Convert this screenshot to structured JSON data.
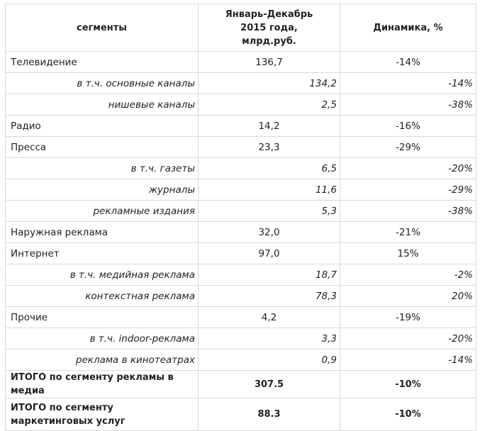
{
  "header": {
    "segment": "сегменты",
    "period_line1": "Январь-Декабрь",
    "period_line2": "2015 года,",
    "period_line3": "млрд.руб.",
    "dynamics": "Динамика, %"
  },
  "rows": [
    {
      "type": "main",
      "segment": "Телевидение",
      "value": "136,7",
      "dynamics": "-14%"
    },
    {
      "type": "sub",
      "segment": "в т.ч. основные каналы",
      "value": "134,2",
      "dynamics": "-14%"
    },
    {
      "type": "sub",
      "segment": "нишевые каналы",
      "value": "2,5",
      "dynamics": "-38%"
    },
    {
      "type": "main",
      "segment": "Радио",
      "value": "14,2",
      "dynamics": "-16%"
    },
    {
      "type": "main",
      "segment": "Пресса",
      "value": "23,3",
      "dynamics": "-29%"
    },
    {
      "type": "sub",
      "segment": "в т.ч. газеты",
      "value": "6,5",
      "dynamics": "-20%"
    },
    {
      "type": "sub",
      "segment": "журналы",
      "value": "11,6",
      "dynamics": "-29%"
    },
    {
      "type": "sub",
      "segment": "рекламные издания",
      "value": "5,3",
      "dynamics": "-38%"
    },
    {
      "type": "main",
      "segment": "Наружная реклама",
      "value": "32,0",
      "dynamics": "-21%"
    },
    {
      "type": "main",
      "segment": "Интернет",
      "value": "97,0",
      "dynamics": "15%"
    },
    {
      "type": "sub",
      "segment": "в т.ч. медийная реклама",
      "value": "18,7",
      "dynamics": "-2%"
    },
    {
      "type": "sub",
      "segment": "контекстная реклама",
      "value": "78,3",
      "dynamics": "20%"
    },
    {
      "type": "main",
      "segment": "Прочие",
      "value": "4,2",
      "dynamics": "-19%"
    },
    {
      "type": "sub",
      "segment": "в т.ч. indoor-реклама",
      "value": "3,3",
      "dynamics": "-20%"
    },
    {
      "type": "sub",
      "segment": "реклама в кинотеатрах",
      "value": "0,9",
      "dynamics": "-14%"
    },
    {
      "type": "total",
      "segment": "ИТОГО по сегменту рекламы в медиа",
      "value": "307.5",
      "dynamics": "-10%"
    },
    {
      "type": "total",
      "segment": "ИТОГО по сегменту маркетинговых услуг",
      "value": "88.3",
      "dynamics": "-10%"
    }
  ]
}
